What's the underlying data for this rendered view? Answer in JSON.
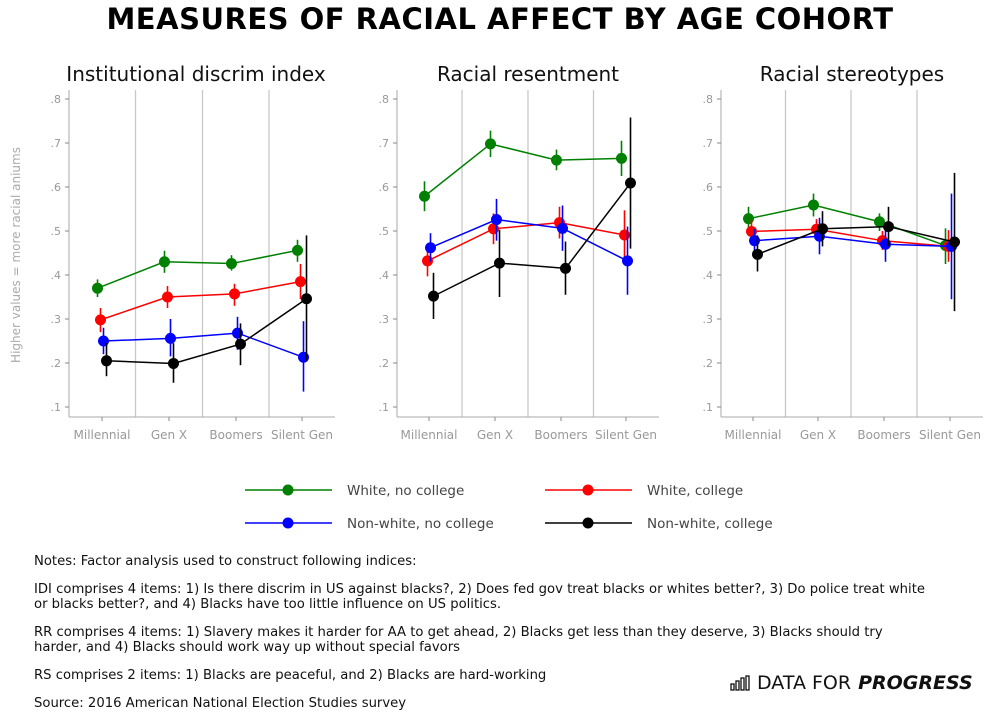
{
  "title": "MEASURES OF RACIAL AFFECT BY AGE COHORT",
  "ylabel": "Higher values = more racial aniums",
  "legend": [
    {
      "label": "White, no college",
      "color": "#008000"
    },
    {
      "label": "White, college",
      "color": "#ff0000"
    },
    {
      "label": "Non-white, no college",
      "color": "#0000ff"
    },
    {
      "label": "Non-white, college",
      "color": "#000000"
    }
  ],
  "chart_data": [
    {
      "type": "line",
      "title": "Institutional discrim index",
      "categories": [
        "Millennial",
        "Gen X",
        "Boomers",
        "Silent Gen"
      ],
      "ylim": [
        0.1,
        0.8
      ],
      "yticks": [
        ".1",
        ".2",
        ".3",
        ".4",
        ".5",
        ".6",
        ".7",
        ".8"
      ],
      "error_bars": true,
      "series": [
        {
          "name": "White, no college",
          "values": [
            0.37,
            0.43,
            0.426,
            0.456
          ],
          "lo": [
            0.35,
            0.405,
            0.41,
            0.43
          ],
          "hi": [
            0.39,
            0.455,
            0.445,
            0.48
          ]
        },
        {
          "name": "White, college",
          "values": [
            0.298,
            0.35,
            0.357,
            0.385
          ],
          "lo": [
            0.27,
            0.325,
            0.33,
            0.345
          ],
          "hi": [
            0.325,
            0.375,
            0.38,
            0.425
          ]
        },
        {
          "name": "Non-white, no college",
          "values": [
            0.25,
            0.256,
            0.268,
            0.213
          ],
          "lo": [
            0.22,
            0.215,
            0.23,
            0.135
          ],
          "hi": [
            0.28,
            0.3,
            0.305,
            0.295
          ]
        },
        {
          "name": "Non-white, college",
          "values": [
            0.205,
            0.199,
            0.243,
            0.346
          ],
          "lo": [
            0.17,
            0.155,
            0.195,
            0.205
          ],
          "hi": [
            0.245,
            0.245,
            0.29,
            0.49
          ]
        }
      ]
    },
    {
      "type": "line",
      "title": "Racial resentment",
      "categories": [
        "Millennial",
        "Gen X",
        "Boomers",
        "Silent Gen"
      ],
      "ylim": [
        0.1,
        0.8
      ],
      "yticks": [
        ".1",
        ".2",
        ".3",
        ".4",
        ".5",
        ".6",
        ".7",
        ".8"
      ],
      "error_bars": true,
      "series": [
        {
          "name": "White, no college",
          "values": [
            0.579,
            0.698,
            0.661,
            0.665
          ],
          "lo": [
            0.545,
            0.668,
            0.638,
            0.625
          ],
          "hi": [
            0.613,
            0.728,
            0.685,
            0.705
          ]
        },
        {
          "name": "White, college",
          "values": [
            0.432,
            0.505,
            0.519,
            0.491
          ],
          "lo": [
            0.397,
            0.47,
            0.483,
            0.44
          ],
          "hi": [
            0.467,
            0.54,
            0.555,
            0.547
          ]
        },
        {
          "name": "Non-white, no college",
          "values": [
            0.462,
            0.526,
            0.506,
            0.432
          ],
          "lo": [
            0.43,
            0.478,
            0.455,
            0.355
          ],
          "hi": [
            0.495,
            0.573,
            0.558,
            0.51
          ]
        },
        {
          "name": "Non-white, college",
          "values": [
            0.352,
            0.427,
            0.415,
            0.609
          ],
          "lo": [
            0.3,
            0.35,
            0.355,
            0.46
          ],
          "hi": [
            0.405,
            0.503,
            0.476,
            0.758
          ]
        }
      ]
    },
    {
      "type": "line",
      "title": "Racial stereotypes",
      "categories": [
        "Millennial",
        "Gen X",
        "Boomers",
        "Silent Gen"
      ],
      "ylim": [
        0.1,
        0.8
      ],
      "yticks": [
        ".1",
        ".2",
        ".3",
        ".4",
        ".5",
        ".6",
        ".7",
        ".8"
      ],
      "error_bars": true,
      "series": [
        {
          "name": "White, no college",
          "values": [
            0.528,
            0.559,
            0.521,
            0.467
          ],
          "lo": [
            0.5,
            0.533,
            0.5,
            0.425
          ],
          "hi": [
            0.555,
            0.585,
            0.54,
            0.506
          ]
        },
        {
          "name": "White, college",
          "values": [
            0.499,
            0.504,
            0.478,
            0.465
          ],
          "lo": [
            0.47,
            0.48,
            0.457,
            0.43
          ],
          "hi": [
            0.525,
            0.527,
            0.5,
            0.502
          ]
        },
        {
          "name": "Non-white, no college",
          "values": [
            0.478,
            0.488,
            0.47,
            0.465
          ],
          "lo": [
            0.45,
            0.447,
            0.43,
            0.345
          ],
          "hi": [
            0.505,
            0.53,
            0.51,
            0.585
          ]
        },
        {
          "name": "Non-white, college",
          "values": [
            0.447,
            0.505,
            0.51,
            0.475
          ],
          "lo": [
            0.408,
            0.465,
            0.465,
            0.318
          ],
          "hi": [
            0.49,
            0.545,
            0.555,
            0.632
          ]
        }
      ]
    }
  ],
  "notes": {
    "intro": "Notes: Factor analysis used to construct following indices:",
    "idi": "IDI comprises 4 items: 1) Is there discrim in US against blacks?, 2) Does fed gov treat blacks or whites better?, 3) Do police treat white or blacks better?, and 4) Blacks have too little influence on US politics.",
    "rr": "RR comprises 4 items: 1) Slavery makes it harder for AA to get ahead, 2) Blacks get less than they deserve, 3) Blacks should try harder, and 4) Blacks should work way up without special favors",
    "rs": "RS comprises 2 items: 1) Blacks are peaceful, and 2) Blacks are hard-working",
    "source": "Source: 2016 American National Election Studies survey"
  },
  "logo": {
    "text": "DATA FOR",
    "bold": "PROGRESS"
  }
}
